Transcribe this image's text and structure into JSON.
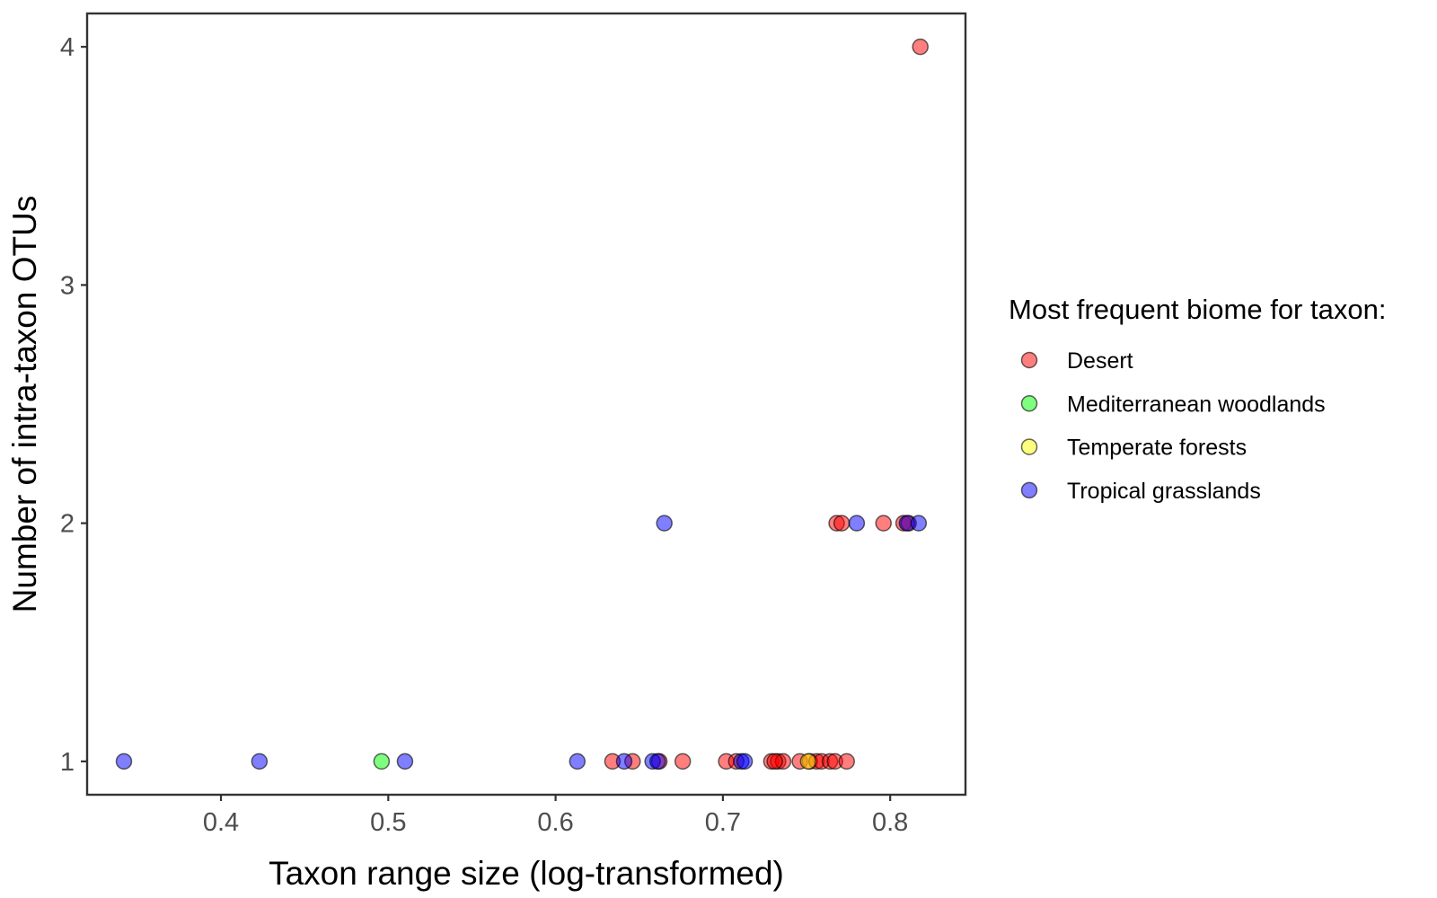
{
  "chart_data": {
    "type": "scatter",
    "title": "",
    "xlabel": "Taxon range size (log-transformed)",
    "ylabel": "Number of intra-taxon OTUs",
    "xlim": [
      0.32,
      0.845
    ],
    "ylim": [
      0.86,
      4.14
    ],
    "x_ticks": [
      0.4,
      0.5,
      0.6,
      0.7,
      0.8
    ],
    "x_tick_labels": [
      "0.4",
      "0.5",
      "0.6",
      "0.7",
      "0.8"
    ],
    "y_ticks": [
      1,
      2,
      3,
      4
    ],
    "y_tick_labels": [
      "1",
      "2",
      "3",
      "4"
    ],
    "grid": false,
    "legend": {
      "title": "Most frequent biome for taxon:",
      "position": "right"
    },
    "series": [
      {
        "name": "Desert",
        "color": "#ff0000",
        "points": [
          {
            "x": 0.818,
            "y": 4
          },
          {
            "x": 0.768,
            "y": 2
          },
          {
            "x": 0.771,
            "y": 2
          },
          {
            "x": 0.796,
            "y": 2
          },
          {
            "x": 0.808,
            "y": 2
          },
          {
            "x": 0.811,
            "y": 2
          },
          {
            "x": 0.634,
            "y": 1
          },
          {
            "x": 0.646,
            "y": 1
          },
          {
            "x": 0.662,
            "y": 1
          },
          {
            "x": 0.676,
            "y": 1
          },
          {
            "x": 0.702,
            "y": 1
          },
          {
            "x": 0.708,
            "y": 1
          },
          {
            "x": 0.729,
            "y": 1
          },
          {
            "x": 0.733,
            "y": 1
          },
          {
            "x": 0.736,
            "y": 1
          },
          {
            "x": 0.746,
            "y": 1
          },
          {
            "x": 0.752,
            "y": 1
          },
          {
            "x": 0.756,
            "y": 1
          },
          {
            "x": 0.759,
            "y": 1
          },
          {
            "x": 0.764,
            "y": 1
          },
          {
            "x": 0.767,
            "y": 1
          },
          {
            "x": 0.774,
            "y": 1
          },
          {
            "x": 0.731,
            "y": 1
          }
        ]
      },
      {
        "name": "Mediterranean woodlands",
        "color": "#00ff00",
        "points": [
          {
            "x": 0.496,
            "y": 1
          }
        ]
      },
      {
        "name": "Temperate forests",
        "color": "#ffff00",
        "points": [
          {
            "x": 0.751,
            "y": 1
          }
        ]
      },
      {
        "name": "Tropical grasslands",
        "color": "#0000ff",
        "points": [
          {
            "x": 0.665,
            "y": 2
          },
          {
            "x": 0.78,
            "y": 2
          },
          {
            "x": 0.81,
            "y": 2
          },
          {
            "x": 0.817,
            "y": 2
          },
          {
            "x": 0.342,
            "y": 1
          },
          {
            "x": 0.423,
            "y": 1
          },
          {
            "x": 0.51,
            "y": 1
          },
          {
            "x": 0.613,
            "y": 1
          },
          {
            "x": 0.641,
            "y": 1
          },
          {
            "x": 0.658,
            "y": 1
          },
          {
            "x": 0.661,
            "y": 1
          },
          {
            "x": 0.711,
            "y": 1
          },
          {
            "x": 0.713,
            "y": 1
          }
        ]
      }
    ]
  }
}
